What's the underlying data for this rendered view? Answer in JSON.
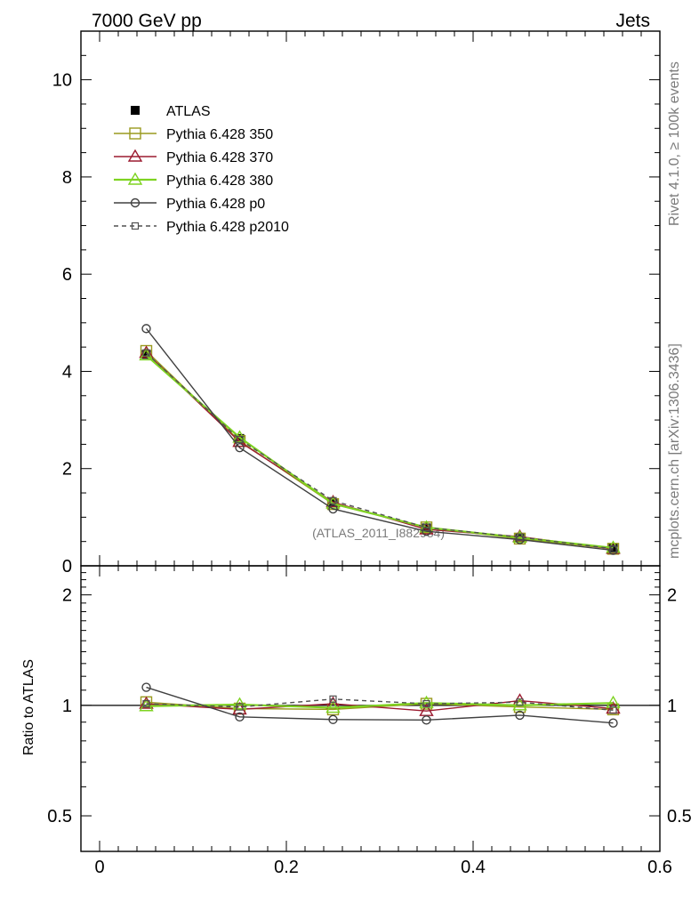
{
  "header": {
    "left": "7000 GeV pp",
    "right": "Jets"
  },
  "side_text": {
    "rivet": "Rivet 4.1.0, ≥ 100k events",
    "mcplots": "mcplots.cern.ch [arXiv:1306.3436]"
  },
  "chart_data": [
    {
      "type": "line",
      "panel": "main",
      "watermark": "(ATLAS_2011_I882984)",
      "x": [
        0.05,
        0.15,
        0.25,
        0.35,
        0.45,
        0.55
      ],
      "xlim": [
        -0.02,
        0.6
      ],
      "ylim": [
        0,
        11
      ],
      "y_ticks": [
        0,
        2,
        4,
        6,
        8,
        10
      ],
      "x_ticks": [
        0,
        0.2,
        0.4,
        0.6
      ],
      "legend_position": "top-left",
      "series": [
        {
          "name": "ATLAS",
          "values": [
            4.35,
            2.62,
            1.3,
            0.78,
            0.58,
            0.36
          ],
          "color": "#000000",
          "marker": "filled-square",
          "style": "none"
        },
        {
          "name": "Pythia 6.428 350",
          "values": [
            4.42,
            2.57,
            1.27,
            0.79,
            0.56,
            0.35
          ],
          "color": "#9a9a1e",
          "marker": "open-square",
          "style": "solid"
        },
        {
          "name": "Pythia 6.428 370",
          "values": [
            4.38,
            2.55,
            1.31,
            0.75,
            0.6,
            0.35
          ],
          "color": "#9b1b30",
          "marker": "open-triangle",
          "style": "solid"
        },
        {
          "name": "Pythia 6.428 380",
          "values": [
            4.33,
            2.64,
            1.28,
            0.79,
            0.58,
            0.37
          ],
          "color": "#7ed321",
          "marker": "open-triangle",
          "style": "solid"
        },
        {
          "name": "Pythia 6.428 p0",
          "values": [
            4.88,
            2.43,
            1.17,
            0.71,
            0.54,
            0.32
          ],
          "color": "#404040",
          "marker": "open-circle",
          "style": "solid"
        },
        {
          "name": "Pythia 6.428 p2010",
          "values": [
            4.38,
            2.6,
            1.34,
            0.79,
            0.59,
            0.35
          ],
          "color": "#505050",
          "marker": "open-square-small",
          "style": "dashed"
        }
      ]
    },
    {
      "type": "line",
      "panel": "ratio",
      "ylabel": "Ratio to ATLAS",
      "x": [
        0.05,
        0.15,
        0.25,
        0.35,
        0.45,
        0.55
      ],
      "xlim": [
        -0.02,
        0.6
      ],
      "ylim": [
        0.4,
        2.4
      ],
      "y_scale": "log",
      "y_ticks": [
        0.5,
        1,
        2
      ],
      "x_ticks": [
        0,
        0.2,
        0.4,
        0.6
      ],
      "series": [
        {
          "name": "Pythia 6.428 350",
          "values": [
            1.02,
            0.98,
            0.975,
            1.01,
            0.99,
            0.975
          ],
          "color": "#9a9a1e",
          "marker": "open-square",
          "style": "solid"
        },
        {
          "name": "Pythia 6.428 370",
          "values": [
            1.01,
            0.975,
            1.01,
            0.965,
            1.03,
            0.98
          ],
          "color": "#9b1b30",
          "marker": "open-triangle",
          "style": "solid"
        },
        {
          "name": "Pythia 6.428 380",
          "values": [
            0.995,
            1.005,
            0.985,
            1.015,
            1.0,
            1.015
          ],
          "color": "#7ed321",
          "marker": "open-triangle",
          "style": "solid"
        },
        {
          "name": "Pythia 6.428 p0",
          "values": [
            1.12,
            0.93,
            0.915,
            0.912,
            0.94,
            0.895
          ],
          "color": "#404040",
          "marker": "open-circle",
          "style": "solid"
        },
        {
          "name": "Pythia 6.428 p2010",
          "values": [
            1.01,
            0.99,
            1.04,
            1.01,
            1.02,
            0.97
          ],
          "color": "#505050",
          "marker": "open-square-small",
          "style": "dashed"
        }
      ]
    }
  ]
}
